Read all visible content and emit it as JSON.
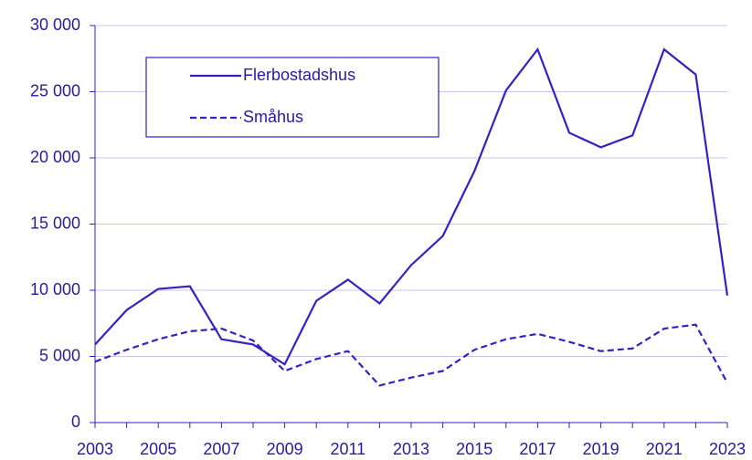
{
  "chart_data": {
    "type": "line",
    "x": [
      2003,
      2004,
      2005,
      2006,
      2007,
      2008,
      2009,
      2010,
      2011,
      2012,
      2013,
      2014,
      2015,
      2016,
      2017,
      2018,
      2019,
      2020,
      2021,
      2022,
      2023
    ],
    "series": [
      {
        "name": "Flerbostadshus",
        "color": "#3422c4",
        "dash": "solid",
        "values": [
          5900,
          8500,
          10100,
          10300,
          6300,
          5900,
          4400,
          9200,
          10800,
          9000,
          11900,
          14100,
          19000,
          25100,
          28200,
          21900,
          20800,
          21700,
          28200,
          26300,
          9600
        ]
      },
      {
        "name": "Småhus",
        "color": "#3422c4",
        "dash": "dashed",
        "values": [
          4600,
          5500,
          6300,
          6900,
          7100,
          6200,
          3900,
          4800,
          5400,
          2800,
          3400,
          3900,
          5500,
          6300,
          6700,
          6100,
          5400,
          5600,
          7100,
          7400,
          3000
        ]
      }
    ],
    "xlim": [
      2003,
      2023
    ],
    "xticks": [
      2003,
      2005,
      2007,
      2009,
      2011,
      2013,
      2015,
      2017,
      2019,
      2021,
      2023
    ],
    "ylim": [
      0,
      30000
    ],
    "yticks": [
      0,
      {
        "value": 5000,
        "label": "5 000"
      },
      {
        "value": 10000,
        "label": "10 000"
      },
      {
        "value": 15000,
        "label": "15 000"
      },
      {
        "value": 20000,
        "label": "20 000"
      },
      {
        "value": 25000,
        "label": "25 000"
      },
      {
        "value": 30000,
        "label": "30 000"
      }
    ],
    "grid": true,
    "legend": "top-left"
  }
}
